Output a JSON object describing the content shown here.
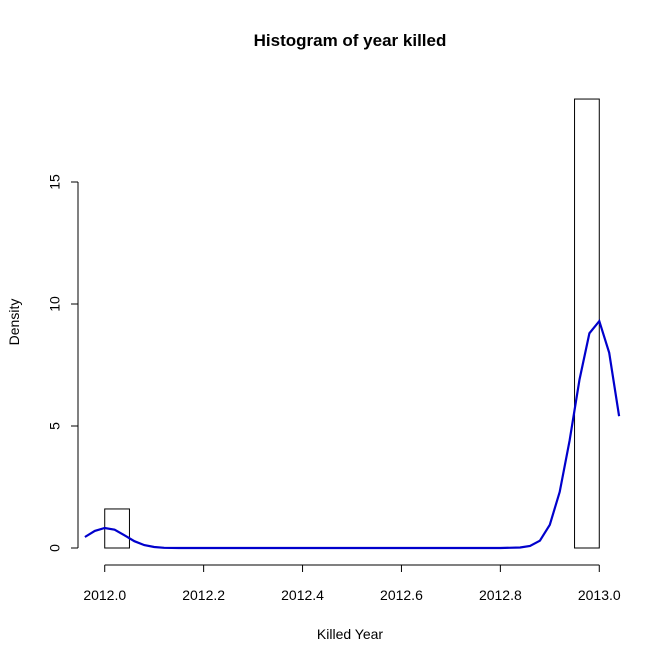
{
  "chart_data": {
    "type": "bar",
    "title": "Histogram of year killed",
    "xlabel": "Killed Year",
    "ylabel": "Density",
    "xlim": [
      2011.95,
      2013.05
    ],
    "ylim": [
      0,
      19
    ],
    "x_ticks": [
      2012.0,
      2012.2,
      2012.4,
      2012.6,
      2012.8,
      2013.0
    ],
    "x_tick_labels": [
      "2012.0",
      "2012.2",
      "2012.4",
      "2012.6",
      "2012.8",
      "2013.0"
    ],
    "y_ticks": [
      0,
      5,
      10,
      15
    ],
    "y_tick_labels": [
      "0",
      "5",
      "10",
      "15"
    ],
    "bins": [
      {
        "start": 2012.0,
        "end": 2012.05,
        "density": 1.6
      },
      {
        "start": 2012.95,
        "end": 2013.0,
        "density": 18.4
      }
    ],
    "series": [
      {
        "type": "line",
        "color": "#0000cc",
        "x": [
          2011.96,
          2011.98,
          2012.0,
          2012.02,
          2012.04,
          2012.06,
          2012.08,
          2012.1,
          2012.12,
          2012.15,
          2012.2,
          2012.4,
          2012.6,
          2012.8,
          2012.84,
          2012.86,
          2012.88,
          2012.9,
          2012.92,
          2012.94,
          2012.96,
          2012.98,
          2013.0,
          2013.02,
          2013.04
        ],
        "y": [
          0.45,
          0.7,
          0.82,
          0.75,
          0.52,
          0.28,
          0.12,
          0.04,
          0.01,
          0.0,
          0.0,
          0.0,
          0.0,
          0.0,
          0.02,
          0.08,
          0.3,
          0.95,
          2.3,
          4.4,
          6.9,
          8.8,
          9.3,
          8.0,
          5.4
        ]
      }
    ],
    "grid": false,
    "legend": "none"
  }
}
